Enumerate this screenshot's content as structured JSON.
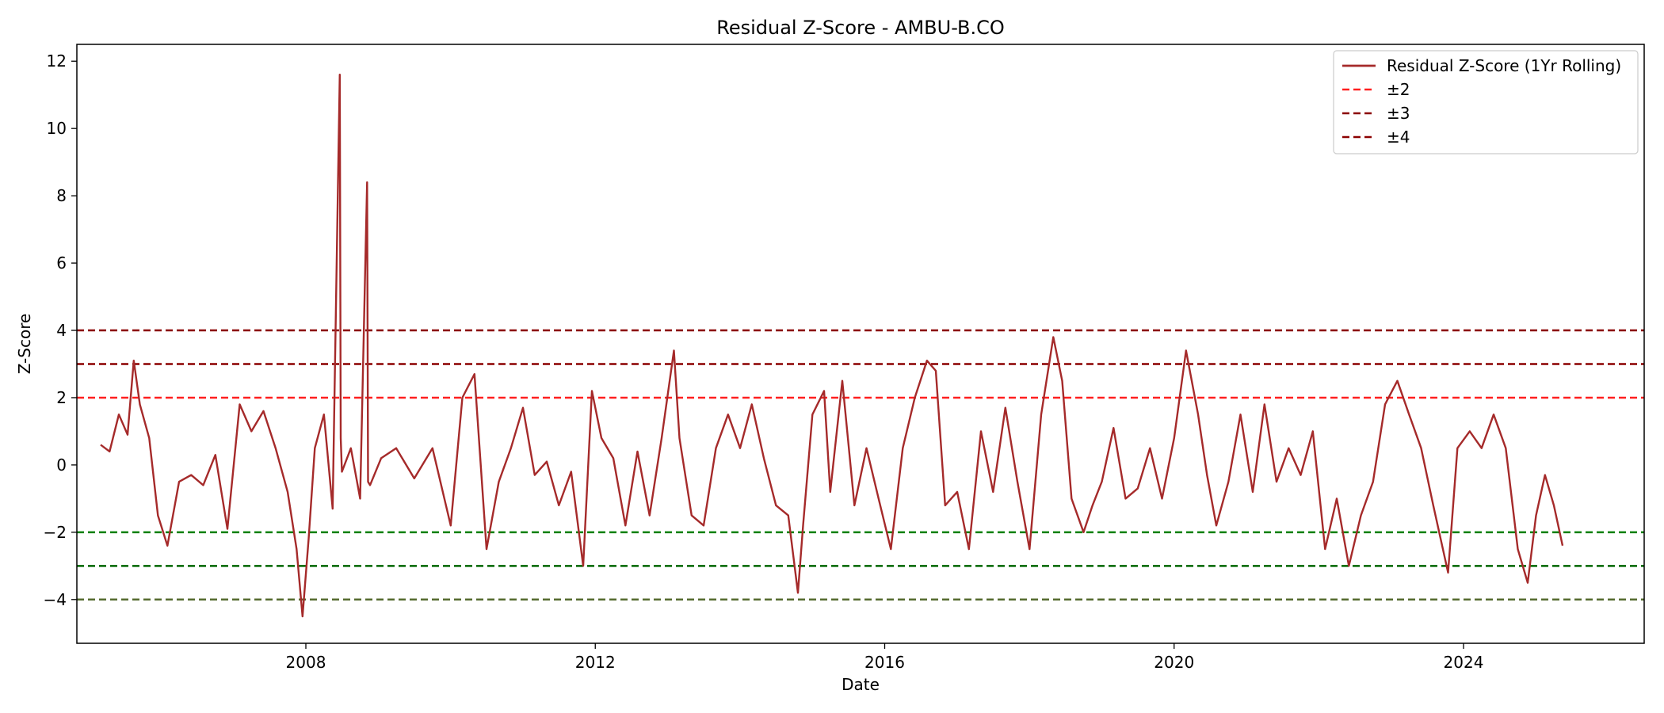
{
  "chart_data": {
    "type": "line",
    "title": "Residual Z-Score - AMBU-B.CO",
    "xlabel": "Date",
    "ylabel": "Z-Score",
    "xlim": [
      "2004-11-01",
      "2026-07-01"
    ],
    "ylim": [
      -5.3,
      12.5
    ],
    "x_ticks": [
      {
        "value": "2008-01-01",
        "label": "2008"
      },
      {
        "value": "2012-01-01",
        "label": "2012"
      },
      {
        "value": "2016-01-01",
        "label": "2016"
      },
      {
        "value": "2020-01-01",
        "label": "2020"
      },
      {
        "value": "2024-01-01",
        "label": "2024"
      }
    ],
    "y_ticks": [
      {
        "value": -4,
        "label": "−4"
      },
      {
        "value": -2,
        "label": "−2"
      },
      {
        "value": 0,
        "label": "0"
      },
      {
        "value": 2,
        "label": "2"
      },
      {
        "value": 4,
        "label": "4"
      },
      {
        "value": 6,
        "label": "6"
      },
      {
        "value": 8,
        "label": "8"
      },
      {
        "value": 10,
        "label": "10"
      },
      {
        "value": 12,
        "label": "12"
      }
    ],
    "grid": false,
    "legend_position": "top-right",
    "series": [
      {
        "name": "Residual Z-Score (1Yr Rolling)",
        "color": "#a52a2a",
        "x": [
          "2005-03-01",
          "2005-04-15",
          "2005-06-01",
          "2005-07-15",
          "2005-08-15",
          "2005-09-15",
          "2005-11-01",
          "2005-12-15",
          "2006-02-01",
          "2006-04-01",
          "2006-06-01",
          "2006-08-01",
          "2006-10-01",
          "2006-12-01",
          "2007-02-01",
          "2007-04-01",
          "2007-06-01",
          "2007-08-01",
          "2007-10-01",
          "2007-11-15",
          "2007-12-15",
          "2008-01-15",
          "2008-02-15",
          "2008-04-01",
          "2008-05-15",
          "2008-06-20",
          "2008-06-25",
          "2008-07-01",
          "2008-08-15",
          "2008-10-01",
          "2008-11-05",
          "2008-11-10",
          "2008-11-20",
          "2009-01-15",
          "2009-04-01",
          "2009-07-01",
          "2009-10-01",
          "2010-01-01",
          "2010-03-01",
          "2010-05-01",
          "2010-07-01",
          "2010-09-01",
          "2010-11-01",
          "2011-01-01",
          "2011-03-01",
          "2011-05-01",
          "2011-07-01",
          "2011-09-01",
          "2011-11-01",
          "2011-12-15",
          "2012-02-01",
          "2012-04-01",
          "2012-06-01",
          "2012-08-01",
          "2012-10-01",
          "2012-12-01",
          "2013-02-01",
          "2013-03-01",
          "2013-05-01",
          "2013-07-01",
          "2013-09-01",
          "2013-11-01",
          "2014-01-01",
          "2014-03-01",
          "2014-05-01",
          "2014-07-01",
          "2014-09-01",
          "2014-10-20",
          "2014-11-15",
          "2015-01-01",
          "2015-03-01",
          "2015-04-01",
          "2015-06-01",
          "2015-08-01",
          "2015-10-01",
          "2015-12-01",
          "2016-02-01",
          "2016-04-01",
          "2016-06-01",
          "2016-08-01",
          "2016-09-15",
          "2016-11-01",
          "2017-01-01",
          "2017-03-01",
          "2017-05-01",
          "2017-07-01",
          "2017-09-01",
          "2017-11-01",
          "2018-01-01",
          "2018-03-01",
          "2018-05-01",
          "2018-06-15",
          "2018-08-01",
          "2018-10-01",
          "2018-11-15",
          "2019-01-01",
          "2019-03-01",
          "2019-05-01",
          "2019-07-01",
          "2019-09-01",
          "2019-11-01",
          "2020-01-01",
          "2020-03-01",
          "2020-05-01",
          "2020-06-15",
          "2020-08-01",
          "2020-10-01",
          "2020-12-01",
          "2021-02-01",
          "2021-04-01",
          "2021-06-01",
          "2021-08-01",
          "2021-10-01",
          "2021-12-01",
          "2022-02-01",
          "2022-04-01",
          "2022-06-01",
          "2022-08-01",
          "2022-10-01",
          "2022-12-01",
          "2023-02-01",
          "2023-04-01",
          "2023-06-01",
          "2023-08-01",
          "2023-10-15",
          "2023-12-01",
          "2024-02-01",
          "2024-04-01",
          "2024-06-01",
          "2024-08-01",
          "2024-10-01",
          "2024-11-20",
          "2025-01-01",
          "2025-02-15",
          "2025-04-01",
          "2025-05-15"
        ],
        "y": [
          0.6,
          0.4,
          1.5,
          0.9,
          3.1,
          1.8,
          0.8,
          -1.5,
          -2.4,
          -0.5,
          -0.3,
          -0.6,
          0.3,
          -1.9,
          1.8,
          1.0,
          1.6,
          0.5,
          -0.8,
          -2.5,
          -4.5,
          -2.2,
          0.5,
          1.5,
          -1.3,
          11.6,
          0.8,
          -0.2,
          0.5,
          -1.0,
          8.4,
          -0.5,
          -0.6,
          0.2,
          0.5,
          -0.4,
          0.5,
          -1.8,
          2.0,
          2.7,
          -2.5,
          -0.5,
          0.5,
          1.7,
          -0.3,
          0.1,
          -1.2,
          -0.2,
          -3.0,
          2.2,
          0.8,
          0.2,
          -1.8,
          0.4,
          -1.5,
          0.8,
          3.4,
          0.8,
          -1.5,
          -1.8,
          0.5,
          1.5,
          0.5,
          1.8,
          0.2,
          -1.2,
          -1.5,
          -3.8,
          -1.8,
          1.5,
          2.2,
          -0.8,
          2.5,
          -1.2,
          0.5,
          -1.0,
          -2.5,
          0.5,
          2.0,
          3.1,
          2.8,
          -1.2,
          -0.8,
          -2.5,
          1.0,
          -0.8,
          1.7,
          -0.5,
          -2.5,
          1.5,
          3.8,
          2.5,
          -1.0,
          -2.0,
          -1.2,
          -0.5,
          1.1,
          -1.0,
          -0.7,
          0.5,
          -1.0,
          0.8,
          3.4,
          1.5,
          -0.3,
          -1.8,
          -0.5,
          1.5,
          -0.8,
          1.8,
          -0.5,
          0.5,
          -0.3,
          1.0,
          -2.5,
          -1.0,
          -3.0,
          -1.5,
          -0.5,
          1.8,
          2.5,
          1.5,
          0.5,
          -1.2,
          -3.2,
          0.5,
          1.0,
          0.5,
          1.5,
          0.5,
          -2.5,
          -3.5,
          -1.5,
          -0.3,
          -1.2,
          -2.4
        ]
      }
    ],
    "reference_lines": [
      {
        "value": 2,
        "color": "#ff2020",
        "legend": "±2"
      },
      {
        "value": 3,
        "color": "#8b0000",
        "legend": "±3"
      },
      {
        "value": 4,
        "color": "#8b0000",
        "legend": "±4"
      },
      {
        "value": -2,
        "color": "#008000"
      },
      {
        "value": -3,
        "color": "#006400"
      },
      {
        "value": -4,
        "color": "#556b2f"
      }
    ]
  }
}
